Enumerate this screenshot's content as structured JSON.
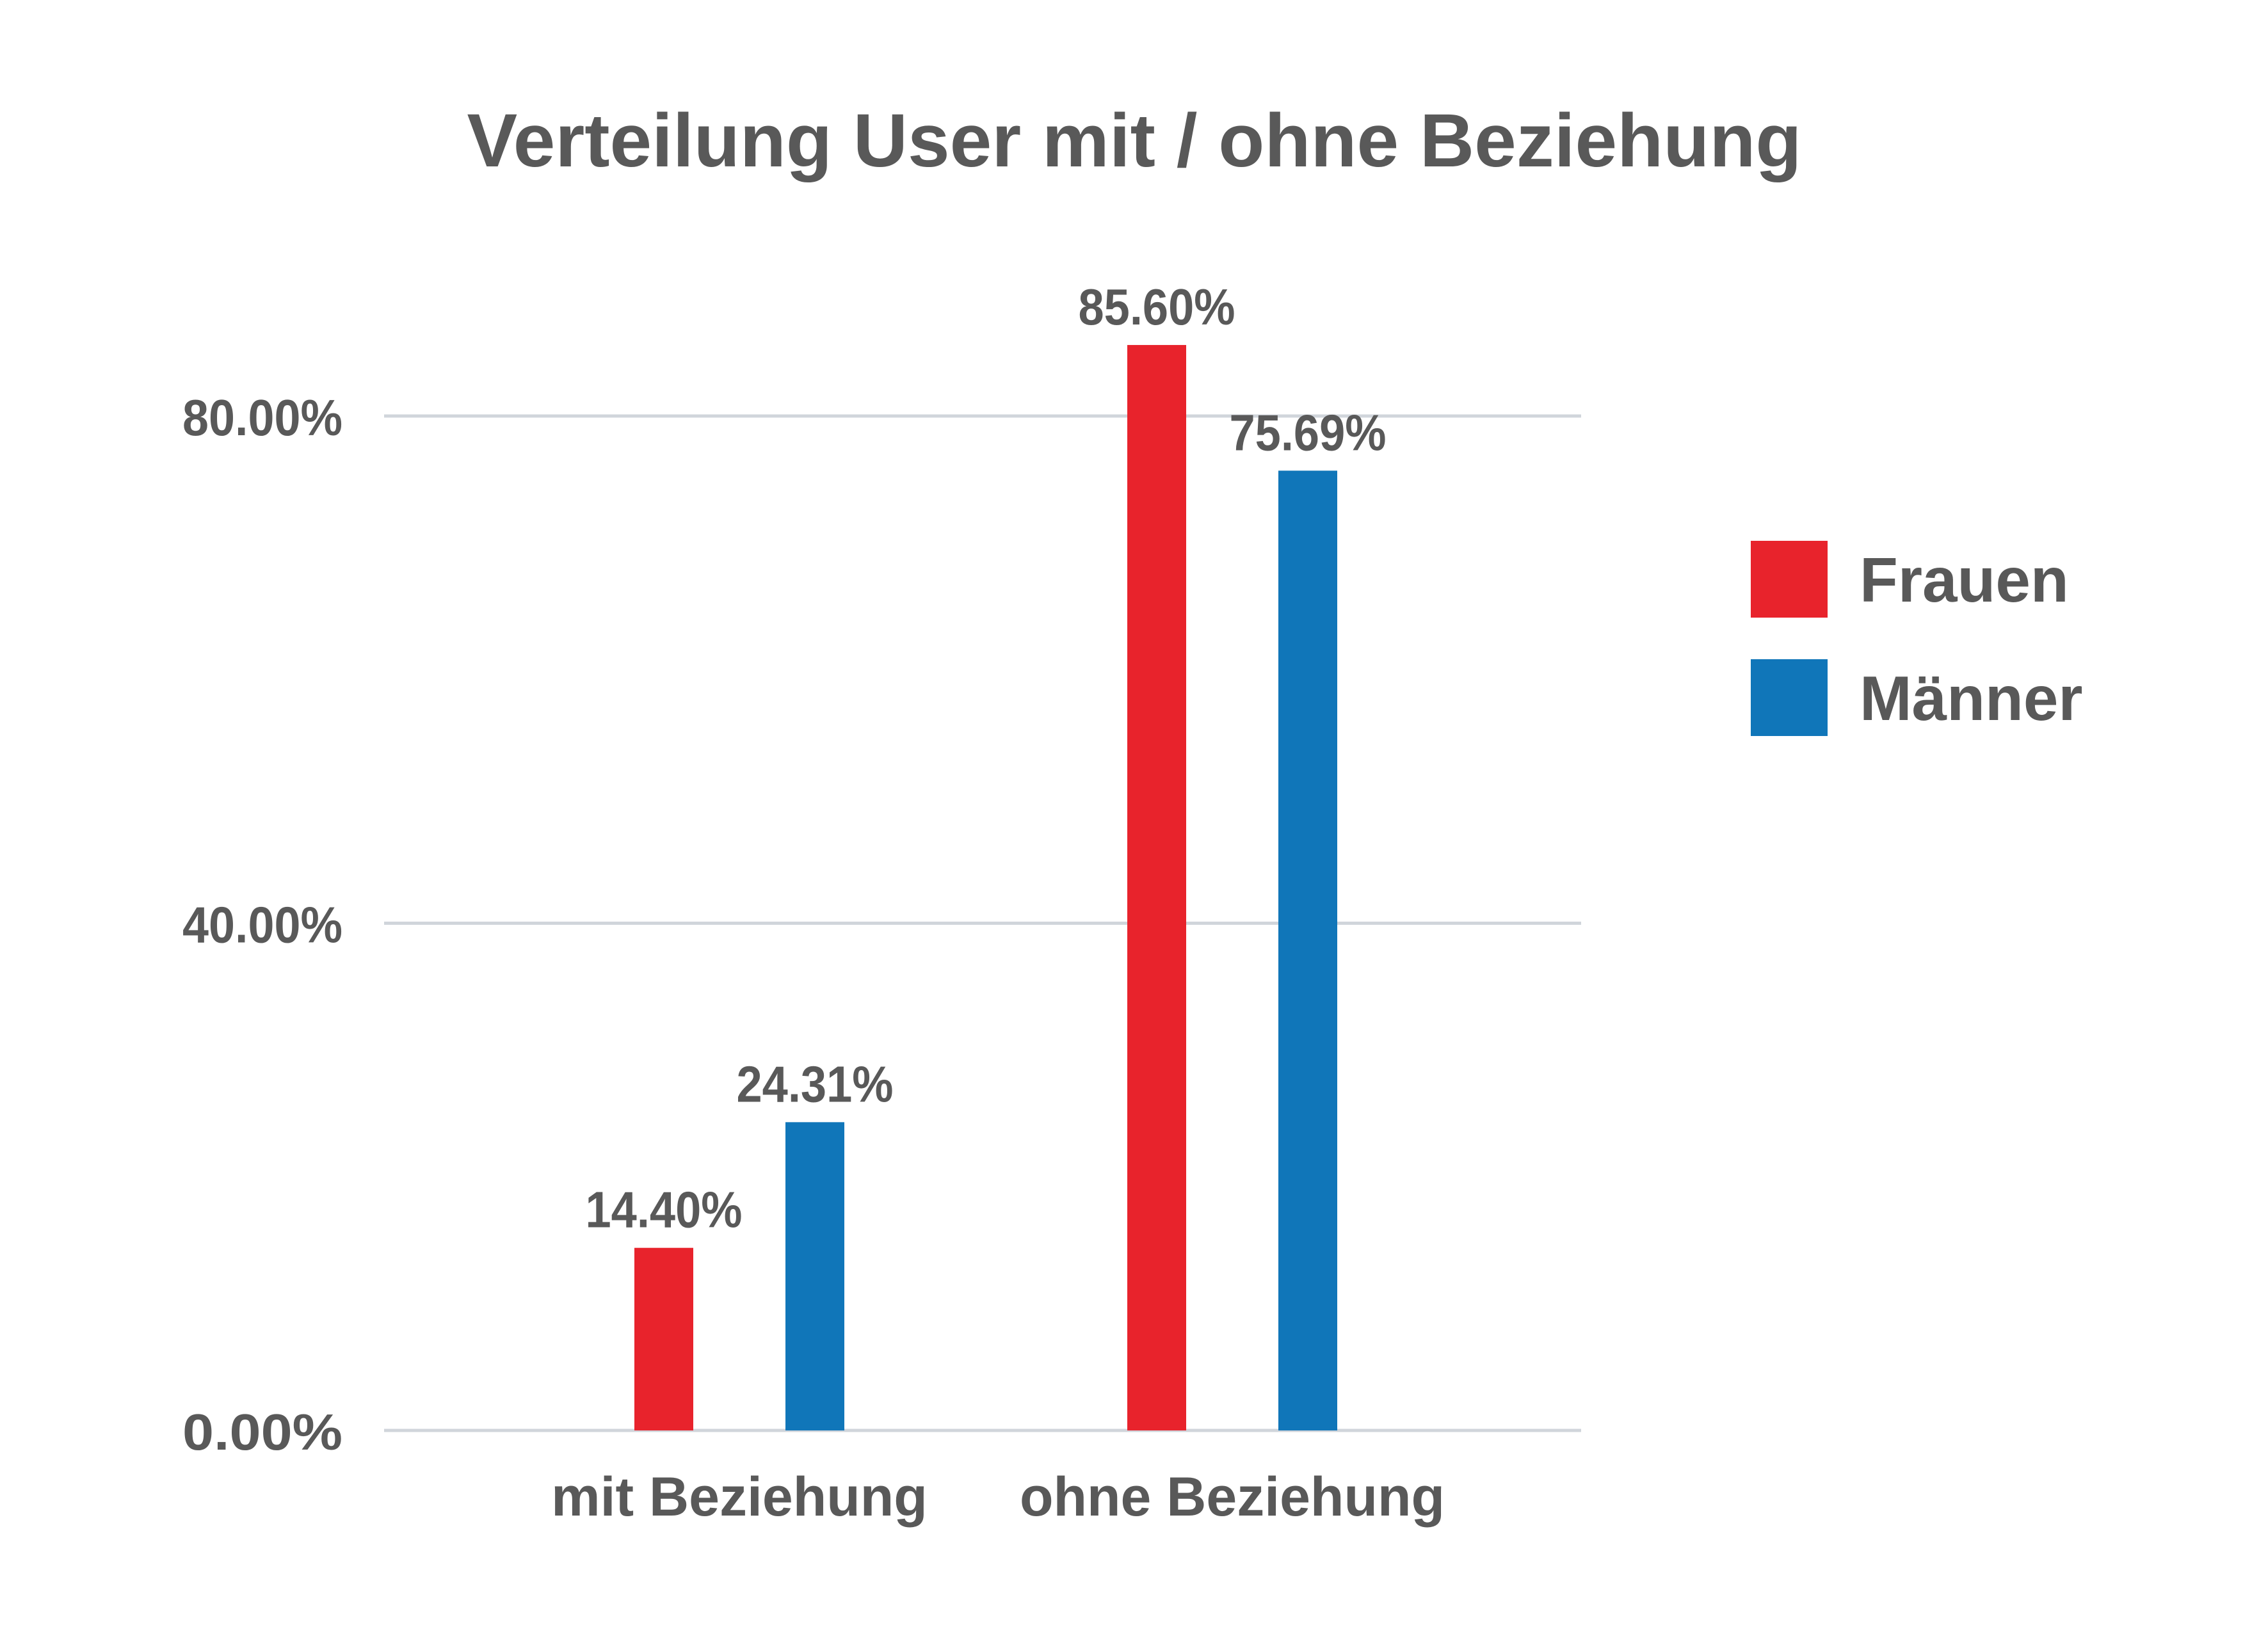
{
  "chart_data": {
    "type": "bar",
    "title": "Verteilung User mit / ohne Beziehung",
    "categories": [
      "mit Beziehung",
      "ohne Beziehung"
    ],
    "series": [
      {
        "name": "Frauen",
        "values": [
          14.4,
          85.6
        ],
        "labels": [
          "14.40%",
          "85.60%"
        ],
        "color": "#E8232C"
      },
      {
        "name": "Männer",
        "values": [
          24.31,
          75.69
        ],
        "labels": [
          "24.31%",
          "75.69%"
        ],
        "color": "#1076B9"
      }
    ],
    "y_ticks": [
      0,
      40,
      80
    ],
    "y_tick_labels": [
      "0.00%",
      "40.00%",
      "80.00%"
    ],
    "ylim": [
      0,
      80
    ],
    "grid": true,
    "legend_position": "right",
    "colors": {
      "text": "#595959",
      "grid": "#D0D5DB"
    }
  }
}
